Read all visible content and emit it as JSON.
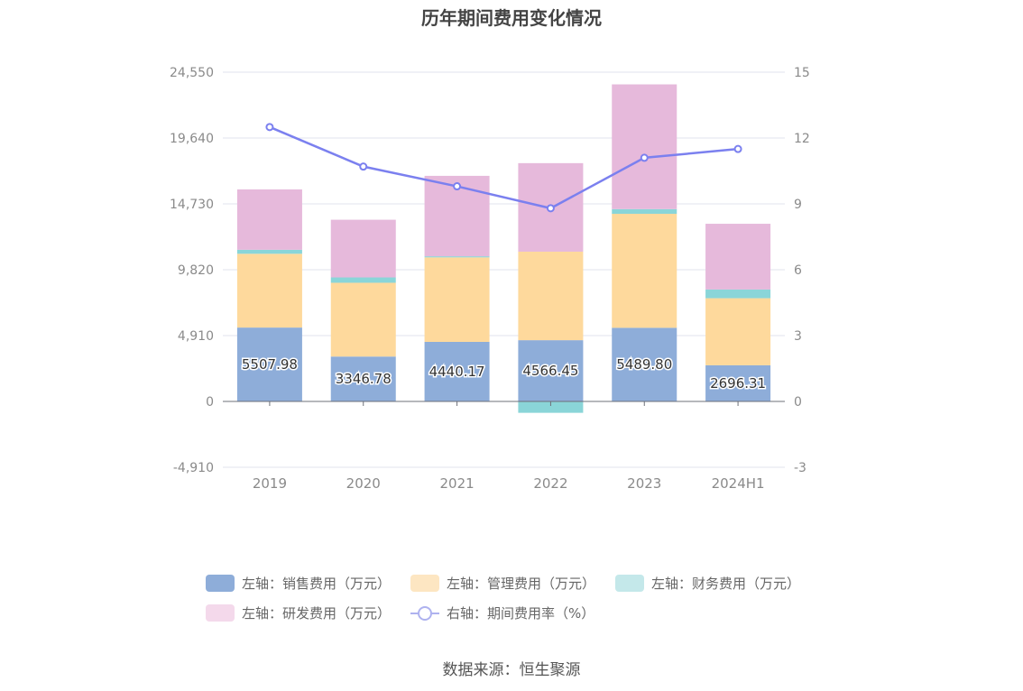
{
  "title": "历年期间费用变化情况",
  "source": "数据来源：恒生聚源",
  "legend": [
    {
      "label": "左轴：销售费用（万元）",
      "color": "#8eadd9",
      "kind": "bar"
    },
    {
      "label": "左轴：管理费用（万元）",
      "color": "#fde6c2",
      "kind": "bar"
    },
    {
      "label": "左轴：财务费用（万元）",
      "color": "#c4e8ea",
      "kind": "bar"
    },
    {
      "label": "左轴：研发费用（万元）",
      "color": "#f4d9eb",
      "kind": "bar"
    },
    {
      "label": "右轴：期间费用率（%）",
      "color": "#aeb2ef",
      "kind": "line"
    }
  ],
  "chart_data": {
    "type": "bar",
    "categories": [
      "2019",
      "2020",
      "2021",
      "2022",
      "2023",
      "2024H1"
    ],
    "left_axis": {
      "ticks": [
        "24,550",
        "19,640",
        "14,730",
        "9,820",
        "4,910",
        "0",
        "-4,910"
      ],
      "ylim": [
        -4910,
        24550
      ]
    },
    "right_axis": {
      "ticks": [
        "15",
        "12",
        "9",
        "6",
        "3",
        "0",
        "-3"
      ],
      "ylim": [
        -3,
        15
      ]
    },
    "series": [
      {
        "name": "左轴：销售费用（万元）",
        "axis": "left",
        "stack": true,
        "color": "#8eadd9",
        "values": [
          5507.98,
          3346.78,
          4440.17,
          4566.45,
          5489.8,
          2696.31
        ],
        "labels": [
          "5507.98",
          "3346.78",
          "4440.17",
          "4566.45",
          "5489.80",
          "2696.31"
        ]
      },
      {
        "name": "左轴：管理费用（万元）",
        "axis": "left",
        "stack": true,
        "color": "#fed99c",
        "values": [
          5500,
          5500,
          6300,
          6600,
          8500,
          5000
        ]
      },
      {
        "name": "左轴：财务费用（万元）",
        "axis": "left",
        "stack": true,
        "color": "#8ad5d8",
        "values": [
          300,
          400,
          80,
          -850,
          350,
          650
        ]
      },
      {
        "name": "左轴：研发费用（万元）",
        "axis": "left",
        "stack": true,
        "color": "#e6b9db",
        "values": [
          4500,
          4300,
          6000,
          6600,
          9300,
          4900
        ]
      },
      {
        "name": "右轴：期间费用率（%）",
        "axis": "right",
        "type": "line",
        "color": "#7b80ef",
        "values": [
          12.5,
          10.7,
          9.8,
          8.8,
          11.1,
          11.5
        ]
      }
    ],
    "grid": true,
    "legend_position": "bottom"
  }
}
